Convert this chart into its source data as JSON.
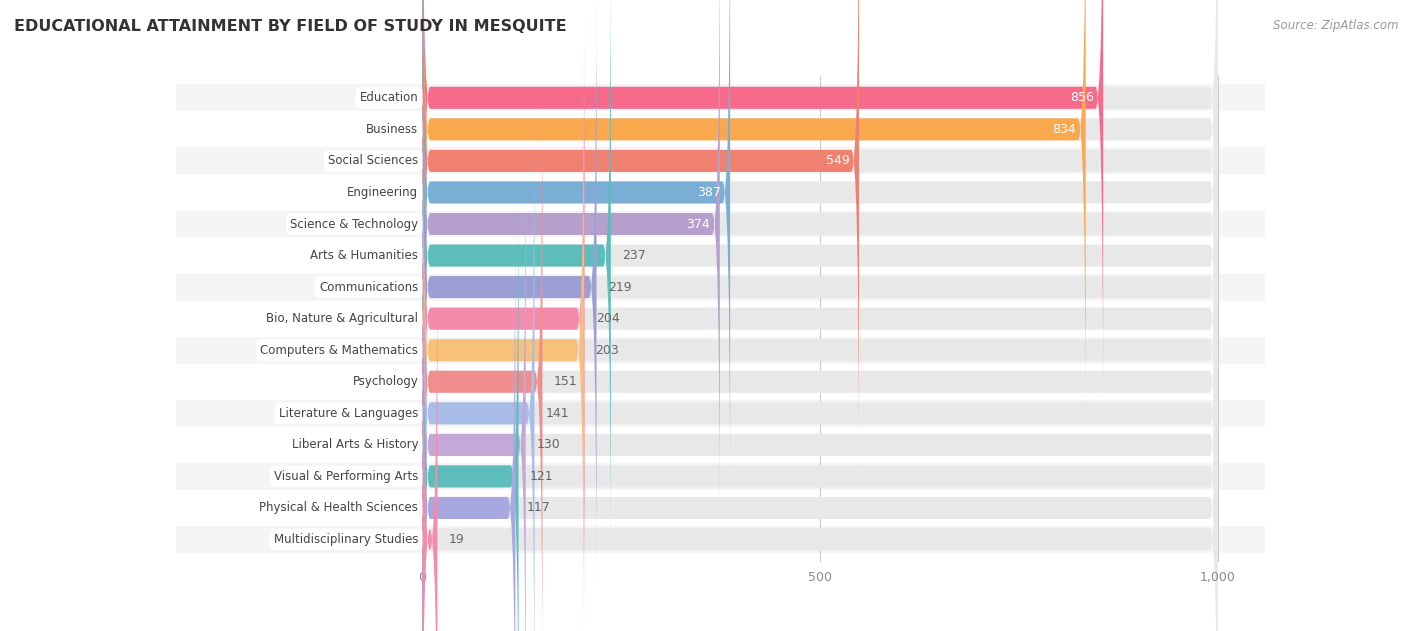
{
  "title": "EDUCATIONAL ATTAINMENT BY FIELD OF STUDY IN MESQUITE",
  "source": "Source: ZipAtlas.com",
  "categories": [
    "Education",
    "Business",
    "Social Sciences",
    "Engineering",
    "Science & Technology",
    "Arts & Humanities",
    "Communications",
    "Bio, Nature & Agricultural",
    "Computers & Mathematics",
    "Psychology",
    "Literature & Languages",
    "Liberal Arts & History",
    "Visual & Performing Arts",
    "Physical & Health Sciences",
    "Multidisciplinary Studies"
  ],
  "values": [
    856,
    834,
    549,
    387,
    374,
    237,
    219,
    204,
    203,
    151,
    141,
    130,
    121,
    117,
    19
  ],
  "bar_colors": [
    "#F76B8A",
    "#F9A84D",
    "#F08070",
    "#7BAED4",
    "#B59FCC",
    "#5DBDBA",
    "#9B9FD4",
    "#F48BAB",
    "#F9C07A",
    "#F08E8E",
    "#A8BEE8",
    "#C4A8D8",
    "#5DBDBA",
    "#A8A8E0",
    "#F48BAB"
  ],
  "xlim_data": [
    0,
    1000
  ],
  "xticks": [
    0,
    500,
    1000
  ],
  "xtick_labels": [
    "0",
    "500",
    "1,000"
  ],
  "background_color": "#ffffff",
  "row_bg_color": "#f2f2f2",
  "bar_bg_color": "#e8e8e8",
  "value_threshold_inside": 300
}
